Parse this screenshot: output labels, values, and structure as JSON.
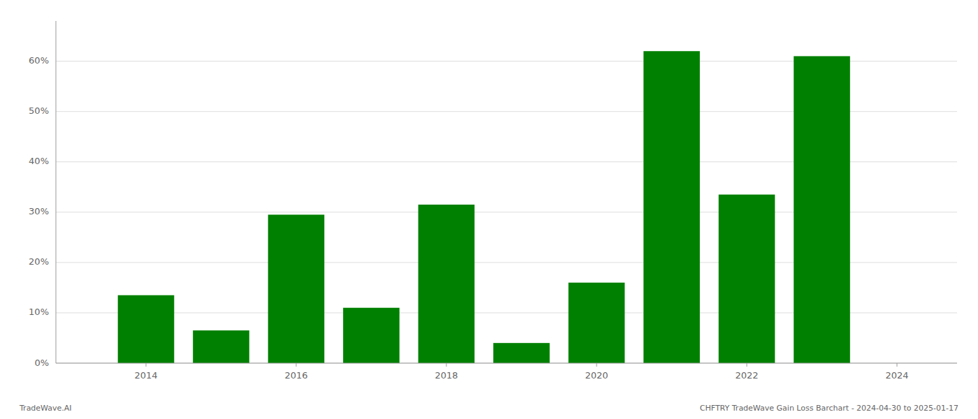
{
  "chart_data": {
    "type": "bar",
    "x": [
      2014,
      2015,
      2016,
      2017,
      2018,
      2019,
      2020,
      2021,
      2022,
      2023
    ],
    "values": [
      0.135,
      0.065,
      0.295,
      0.11,
      0.315,
      0.04,
      0.16,
      0.62,
      0.335,
      0.61
    ],
    "color": "#008000",
    "xlim": [
      2012.8,
      2024.8
    ],
    "xticks": [
      2014,
      2016,
      2018,
      2020,
      2022,
      2024
    ],
    "ylim": [
      0,
      0.68
    ],
    "yticks": [
      {
        "value": 0.0,
        "label": "0%"
      },
      {
        "value": 0.1,
        "label": "10%"
      },
      {
        "value": 0.2,
        "label": "20%"
      },
      {
        "value": 0.3,
        "label": "30%"
      },
      {
        "value": 0.4,
        "label": "40%"
      },
      {
        "value": 0.5,
        "label": "50%"
      },
      {
        "value": 0.6,
        "label": "60%"
      }
    ],
    "grid": true,
    "annotations": [
      "TradeWave.AI",
      "CHFTRY TradeWave Gain Loss Barchart - 2024-04-30 to 2025-01-17"
    ]
  }
}
